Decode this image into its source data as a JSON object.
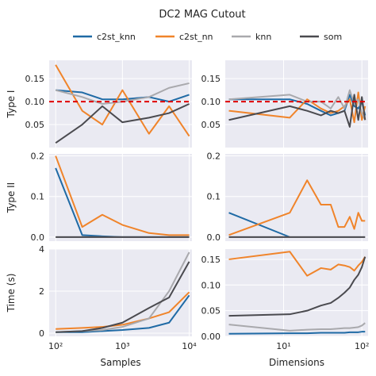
{
  "title": "DC2 MAG Cutout",
  "colors": {
    "c2st_knn": "#1f6aa5",
    "c2st_nn": "#f0842a",
    "knn": "#a9a9ad",
    "som": "#4a4a4f",
    "reference": "#e00000",
    "panel": "#eaeaf2"
  },
  "legend": [
    {
      "key": "c2st_knn",
      "label": "c2st_knn"
    },
    {
      "key": "c2st_nn",
      "label": "c2st_nn"
    },
    {
      "key": "knn",
      "label": "knn"
    },
    {
      "key": "som",
      "label": "som"
    }
  ],
  "chart_data": [
    {
      "type": "line",
      "row": 0,
      "col": 0,
      "ylabel": "Type I",
      "xlabel": "",
      "xscale": "log",
      "xlim": [
        80,
        11000
      ],
      "ylim": [
        0.0,
        0.19
      ],
      "yticks": [
        0.05,
        0.1,
        0.15
      ],
      "ytick_labels": [
        "0.05",
        "0.10",
        "0.15"
      ],
      "xticks": [
        100,
        1000,
        10000
      ],
      "xtick_labels": [],
      "reference_line": 0.1,
      "x": [
        100,
        250,
        500,
        1000,
        2500,
        5000,
        10000
      ],
      "series": [
        {
          "key": "c2st_knn",
          "values": [
            0.125,
            0.12,
            0.105,
            0.105,
            0.11,
            0.1,
            0.115
          ]
        },
        {
          "key": "c2st_nn",
          "values": [
            0.18,
            0.08,
            0.05,
            0.125,
            0.03,
            0.09,
            0.025
          ]
        },
        {
          "key": "knn",
          "values": [
            0.125,
            0.11,
            0.095,
            0.1,
            0.11,
            0.13,
            0.14
          ]
        },
        {
          "key": "som",
          "values": [
            0.01,
            0.05,
            0.09,
            0.055,
            0.065,
            0.075,
            0.095
          ]
        }
      ]
    },
    {
      "type": "line",
      "row": 0,
      "col": 1,
      "ylabel": "",
      "xlabel": "",
      "xscale": "log",
      "xlim": [
        1.8,
        120
      ],
      "ylim": [
        0.0,
        0.19
      ],
      "yticks": [
        0.05,
        0.1,
        0.15
      ],
      "ytick_labels": [
        "0.05",
        "0.10",
        "0.15"
      ],
      "xticks": [
        10,
        100
      ],
      "xtick_labels": [],
      "reference_line": 0.1,
      "x": [
        2,
        12,
        20,
        30,
        40,
        50,
        60,
        70,
        80,
        90,
        100,
        110
      ],
      "series": [
        {
          "key": "c2st_knn",
          "values": [
            0.105,
            0.105,
            0.095,
            0.08,
            0.07,
            0.075,
            0.08,
            0.115,
            0.09,
            0.085,
            0.1,
            0.07
          ]
        },
        {
          "key": "c2st_nn",
          "values": [
            0.08,
            0.065,
            0.105,
            0.085,
            0.075,
            0.08,
            0.09,
            0.105,
            0.055,
            0.12,
            0.06,
            0.09
          ]
        },
        {
          "key": "knn",
          "values": [
            0.105,
            0.115,
            0.1,
            0.1,
            0.085,
            0.11,
            0.085,
            0.125,
            0.095,
            0.105,
            0.075,
            0.06
          ]
        },
        {
          "key": "som",
          "values": [
            0.06,
            0.09,
            0.08,
            0.07,
            0.08,
            0.075,
            0.08,
            0.045,
            0.115,
            0.06,
            0.11,
            0.06
          ]
        }
      ]
    },
    {
      "type": "line",
      "row": 1,
      "col": 0,
      "ylabel": "Type II",
      "xlabel": "",
      "xscale": "log",
      "xlim": [
        80,
        11000
      ],
      "ylim": [
        -0.01,
        0.205
      ],
      "yticks": [
        0.0,
        0.1,
        0.2
      ],
      "ytick_labels": [
        "0.0",
        "0.1",
        "0.2"
      ],
      "xticks": [
        100,
        1000,
        10000
      ],
      "xtick_labels": [],
      "x": [
        100,
        250,
        500,
        1000,
        2500,
        5000,
        10000
      ],
      "series": [
        {
          "key": "c2st_knn",
          "values": [
            0.17,
            0.005,
            0.002,
            0.0,
            0.0,
            0.0,
            0.0
          ]
        },
        {
          "key": "c2st_nn",
          "values": [
            0.2,
            0.025,
            0.055,
            0.03,
            0.01,
            0.005,
            0.005
          ]
        },
        {
          "key": "knn",
          "values": [
            0.0,
            0.0,
            0.0,
            0.0,
            0.0,
            0.0,
            0.0
          ]
        },
        {
          "key": "som",
          "values": [
            0.0,
            0.0,
            0.0,
            0.0,
            0.0,
            0.0,
            0.0
          ]
        }
      ]
    },
    {
      "type": "line",
      "row": 1,
      "col": 1,
      "ylabel": "",
      "xlabel": "",
      "xscale": "log",
      "xlim": [
        1.8,
        120
      ],
      "ylim": [
        -0.01,
        0.205
      ],
      "yticks": [
        0.0,
        0.1,
        0.2
      ],
      "ytick_labels": [
        "0.0",
        "0.1",
        "0.2"
      ],
      "xticks": [
        10,
        100
      ],
      "xtick_labels": [],
      "x": [
        2,
        12,
        20,
        30,
        40,
        50,
        60,
        70,
        80,
        90,
        100,
        110
      ],
      "series": [
        {
          "key": "c2st_knn",
          "values": [
            0.06,
            0.0,
            null,
            null,
            null,
            null,
            null,
            null,
            null,
            null,
            null,
            null
          ]
        },
        {
          "key": "c2st_nn",
          "values": [
            0.005,
            0.06,
            0.14,
            0.08,
            0.08,
            0.025,
            0.025,
            0.05,
            0.02,
            0.06,
            0.04,
            0.04
          ]
        },
        {
          "key": "knn",
          "values": [
            0.0,
            0.0,
            0.0,
            0.0,
            0.0,
            0.0,
            0.0,
            0.0,
            0.0,
            0.0,
            0.0,
            0.0
          ]
        },
        {
          "key": "som",
          "values": [
            0.0,
            0.0,
            0.0,
            0.0,
            0.0,
            0.0,
            0.0,
            0.0,
            0.0,
            0.0,
            0.0,
            0.0
          ]
        }
      ]
    },
    {
      "type": "line",
      "row": 2,
      "col": 0,
      "ylabel": "Time (s)",
      "xlabel": "Samples",
      "xscale": "log",
      "xlim": [
        80,
        11000
      ],
      "ylim": [
        -0.15,
        4.0
      ],
      "yticks": [
        0,
        2,
        4
      ],
      "ytick_labels": [
        "0",
        "2",
        "4"
      ],
      "xticks": [
        100,
        1000,
        10000
      ],
      "xtick_labels": [
        "10²",
        "10³",
        "10⁴"
      ],
      "x": [
        100,
        250,
        500,
        1000,
        2500,
        5000,
        10000
      ],
      "series": [
        {
          "key": "c2st_knn",
          "values": [
            0.05,
            0.05,
            0.1,
            0.15,
            0.25,
            0.5,
            1.8
          ]
        },
        {
          "key": "c2st_nn",
          "values": [
            0.2,
            0.25,
            0.3,
            0.4,
            0.7,
            1.0,
            1.95
          ]
        },
        {
          "key": "knn",
          "values": [
            0.05,
            0.1,
            0.15,
            0.3,
            0.7,
            2.0,
            3.85
          ]
        },
        {
          "key": "som",
          "values": [
            0.05,
            0.1,
            0.25,
            0.5,
            1.2,
            1.7,
            3.4
          ]
        }
      ]
    },
    {
      "type": "line",
      "row": 2,
      "col": 1,
      "ylabel": "",
      "xlabel": "Dimensions",
      "xscale": "log",
      "xlim": [
        1.8,
        120
      ],
      "ylim": [
        0.0,
        0.17
      ],
      "yticks": [
        0.0,
        0.05,
        0.1,
        0.15
      ],
      "ytick_labels": [
        "0.00",
        "0.05",
        "0.10",
        "0.15"
      ],
      "xticks": [
        10,
        100
      ],
      "xtick_labels": [
        "10¹",
        "10²"
      ],
      "x": [
        2,
        12,
        20,
        30,
        40,
        50,
        60,
        70,
        80,
        90,
        100,
        110
      ],
      "series": [
        {
          "key": "c2st_knn",
          "values": [
            0.005,
            0.006,
            0.006,
            0.007,
            0.007,
            0.007,
            0.007,
            0.008,
            0.008,
            0.008,
            0.009,
            0.009
          ]
        },
        {
          "key": "c2st_nn",
          "values": [
            0.15,
            0.165,
            0.118,
            0.133,
            0.13,
            0.14,
            0.138,
            0.135,
            0.128,
            0.138,
            0.145,
            0.155
          ]
        },
        {
          "key": "knn",
          "values": [
            0.023,
            0.011,
            0.013,
            0.014,
            0.014,
            0.015,
            0.016,
            0.016,
            0.017,
            0.018,
            0.021,
            0.026
          ]
        },
        {
          "key": "som",
          "values": [
            0.04,
            0.043,
            0.05,
            0.06,
            0.065,
            0.075,
            0.085,
            0.095,
            0.11,
            0.12,
            0.135,
            0.155
          ]
        }
      ]
    }
  ]
}
